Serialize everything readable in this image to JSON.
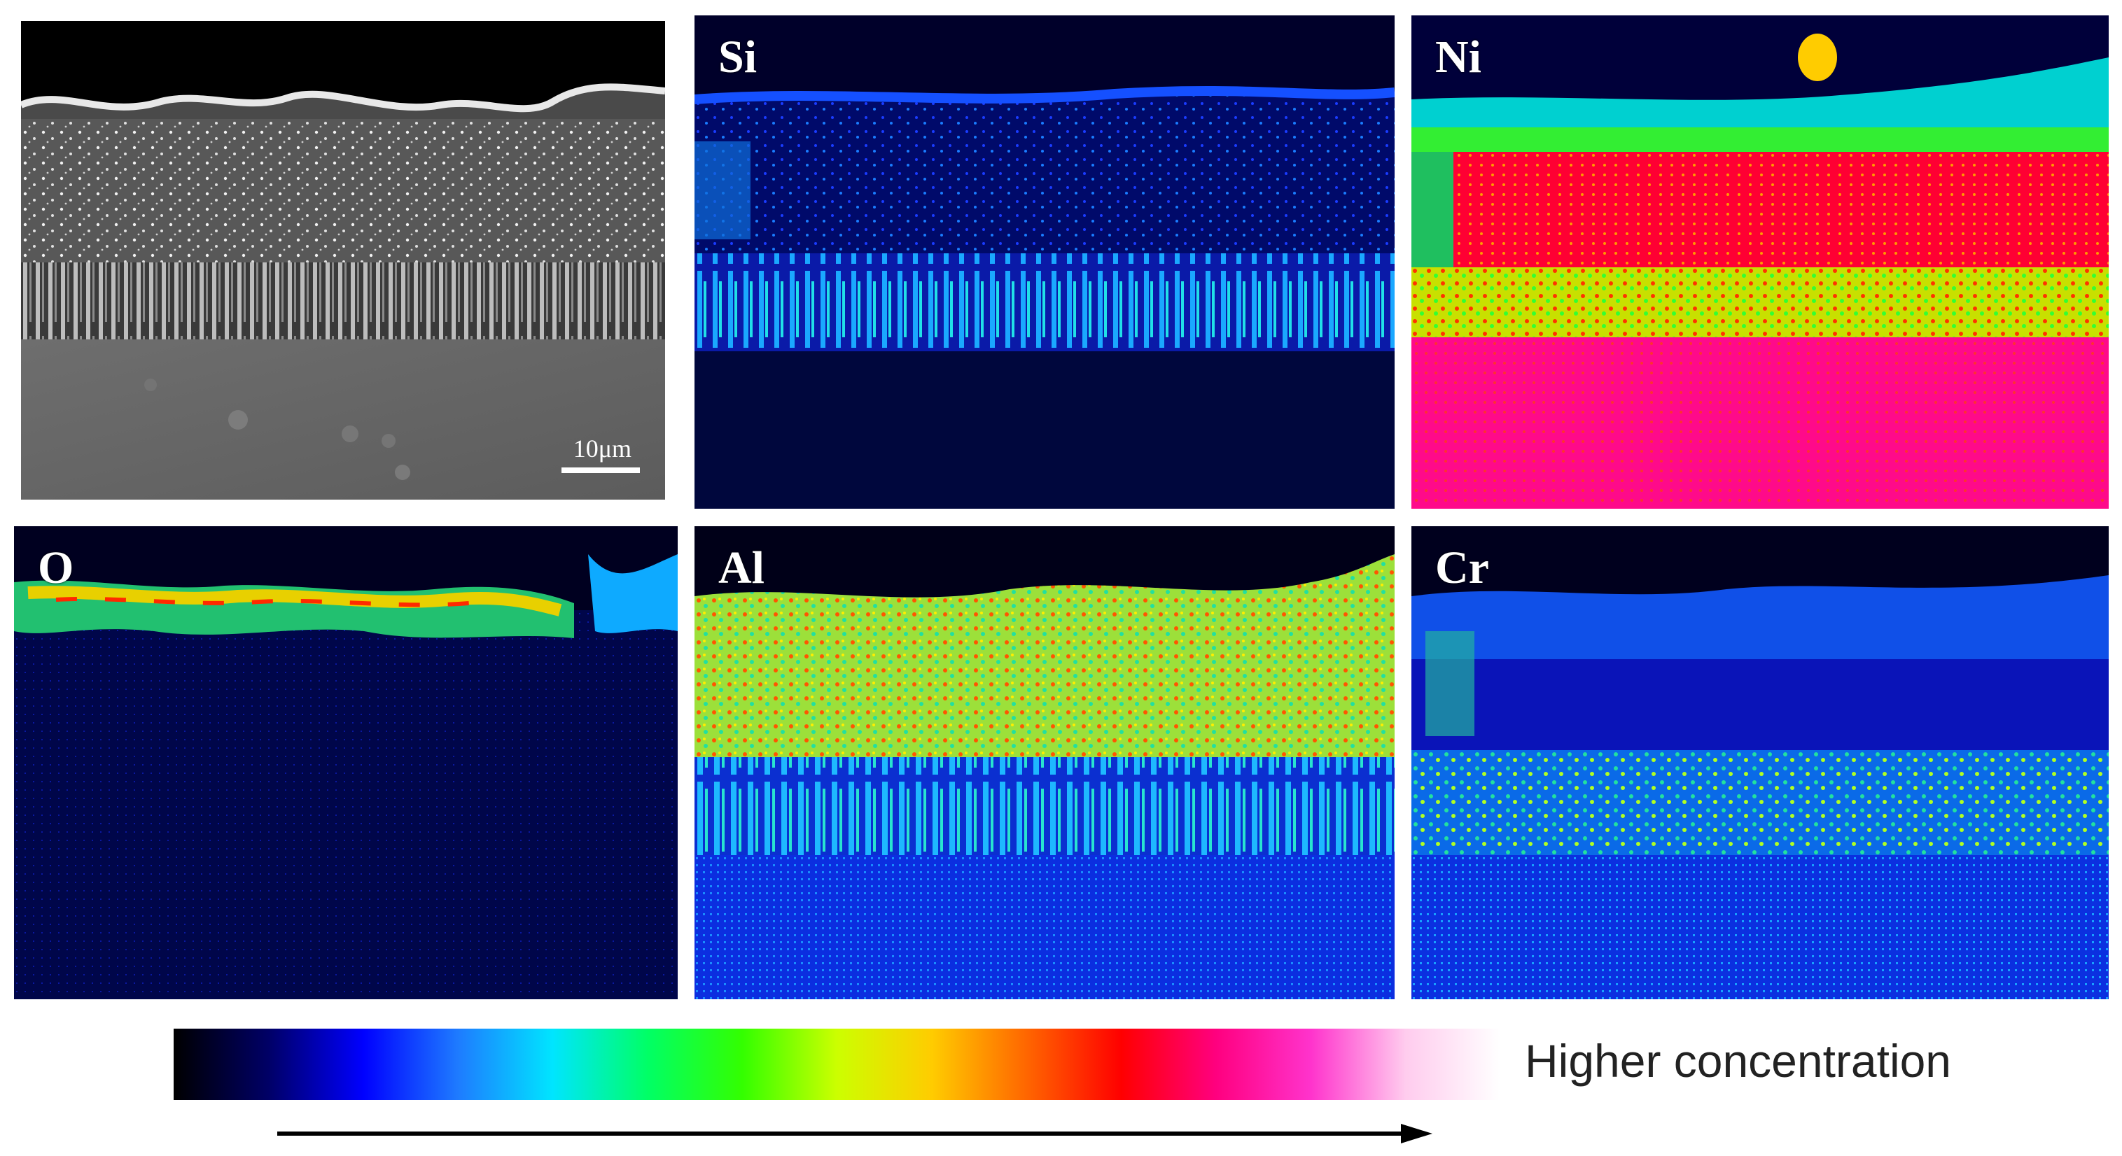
{
  "panels": [
    {
      "id": "sem",
      "label": "",
      "scalebar": "10μm"
    },
    {
      "id": "si",
      "label": "Si"
    },
    {
      "id": "ni",
      "label": "Ni"
    },
    {
      "id": "o",
      "label": "O"
    },
    {
      "id": "al",
      "label": "Al"
    },
    {
      "id": "cr",
      "label": "Cr"
    }
  ],
  "legend": {
    "text": "Higher concentration",
    "colors": [
      "#000000",
      "#000066",
      "#0000ff",
      "#1e7bff",
      "#00e5ff",
      "#00ff66",
      "#33ff00",
      "#ccff00",
      "#ffcc00",
      "#ff6600",
      "#ff0000",
      "#ff007f",
      "#ff33cc",
      "#ffccee",
      "#ffffff"
    ]
  }
}
